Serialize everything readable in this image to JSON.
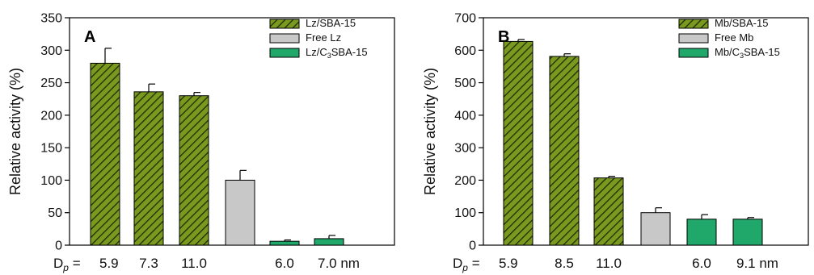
{
  "chart_data": [
    {
      "type": "bar",
      "panel_label": "A",
      "ylabel": "Relative activity (%)",
      "ylim": [
        0,
        350
      ],
      "yticks": [
        0,
        50,
        100,
        150,
        200,
        250,
        300,
        350
      ],
      "dp_label_prefix": "D",
      "dp_label_sub": "p",
      "dp_label_eq": " = ",
      "category_labels": [
        "5.9",
        "7.3",
        "11.0",
        "",
        "6.0",
        "7.0 nm"
      ],
      "series": [
        {
          "name": "Lz/SBA-15",
          "style": "hatch",
          "color": "#7a9a1f",
          "positions": [
            0,
            1,
            2
          ],
          "values": [
            280,
            236,
            230
          ],
          "errors": [
            23,
            12,
            5
          ]
        },
        {
          "name": "Free Lz",
          "style": "solid",
          "color": "#c8c8c8",
          "positions": [
            3
          ],
          "values": [
            100
          ],
          "errors": [
            15
          ]
        },
        {
          "name": "Lz/C3SBA-15",
          "name_parts": [
            "Lz/C",
            "3",
            "SBA-15"
          ],
          "style": "solid",
          "color": "#1fa86a",
          "positions": [
            4,
            5
          ],
          "values": [
            6,
            10
          ],
          "errors": [
            2,
            5
          ]
        }
      ],
      "grid": false,
      "legend": "top-right"
    },
    {
      "type": "bar",
      "panel_label": "B",
      "ylabel": "Relative activity (%)",
      "ylim": [
        0,
        700
      ],
      "yticks": [
        0,
        100,
        200,
        300,
        400,
        500,
        600,
        700
      ],
      "dp_label_prefix": "D",
      "dp_label_sub": "p",
      "dp_label_eq": " = ",
      "category_labels": [
        "5.9",
        "8.5",
        "11.0",
        "",
        "6.0",
        "9.1 nm"
      ],
      "series": [
        {
          "name": "Mb/SBA-15",
          "style": "hatch",
          "color": "#7a9a1f",
          "positions": [
            0,
            1,
            2
          ],
          "values": [
            627,
            581,
            207
          ],
          "errors": [
            6,
            8,
            5
          ]
        },
        {
          "name": "Free Mb",
          "style": "solid",
          "color": "#c8c8c8",
          "positions": [
            3
          ],
          "values": [
            100
          ],
          "errors": [
            15
          ]
        },
        {
          "name": "Mb/C3SBA-15",
          "name_parts": [
            "Mb/C",
            "3",
            "SBA-15"
          ],
          "style": "solid",
          "color": "#1fa86a",
          "positions": [
            4,
            5
          ],
          "values": [
            80,
            80
          ],
          "errors": [
            14,
            5
          ]
        }
      ],
      "grid": false,
      "legend": "top-right"
    }
  ]
}
